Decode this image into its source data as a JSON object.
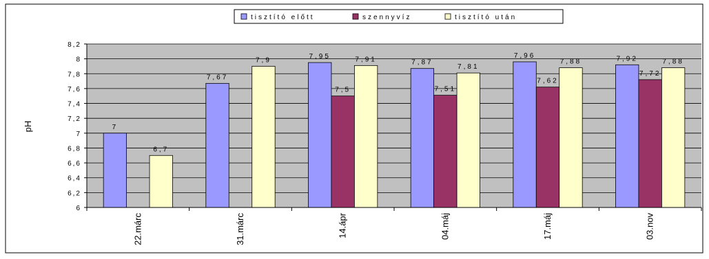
{
  "chart_data": {
    "type": "bar",
    "title": "",
    "xlabel": "",
    "ylabel": "pH",
    "ylim": [
      6,
      8.2
    ],
    "ytick_step": 0.2,
    "grid": true,
    "legend_position": "top-center",
    "categories": [
      "22.márc",
      "31.márc",
      "14.ápr",
      "04.máj",
      "17.máj",
      "03.nov"
    ],
    "series": [
      {
        "name": "tisztító előtt",
        "color": "#9999ff",
        "values": [
          7,
          7.67,
          7.95,
          7.87,
          7.96,
          7.92
        ]
      },
      {
        "name": "szennyvíz",
        "color": "#993366",
        "values": [
          null,
          null,
          7.5,
          7.51,
          7.62,
          7.72
        ]
      },
      {
        "name": "tisztító után",
        "color": "#ffffcc",
        "values": [
          6.7,
          7.9,
          7.91,
          7.81,
          7.88,
          7.88
        ]
      }
    ],
    "data_labels": [
      [
        "7",
        "7,67",
        "7,95",
        "7,87",
        "7,96",
        "7,92"
      ],
      [
        null,
        null,
        "7,5",
        "7,51",
        "7,62",
        "7,72"
      ],
      [
        "6,7",
        "7,9",
        "7,91",
        "7,81",
        "7,88",
        "7,88"
      ]
    ],
    "ytick_labels": [
      "6",
      "6,2",
      "6,4",
      "6,6",
      "6,8",
      "7",
      "7,2",
      "7,4",
      "7,6",
      "7,8",
      "8",
      "8,2"
    ],
    "colors": {
      "plot_bg": "#c0c0c0",
      "grid": "#000000"
    }
  }
}
